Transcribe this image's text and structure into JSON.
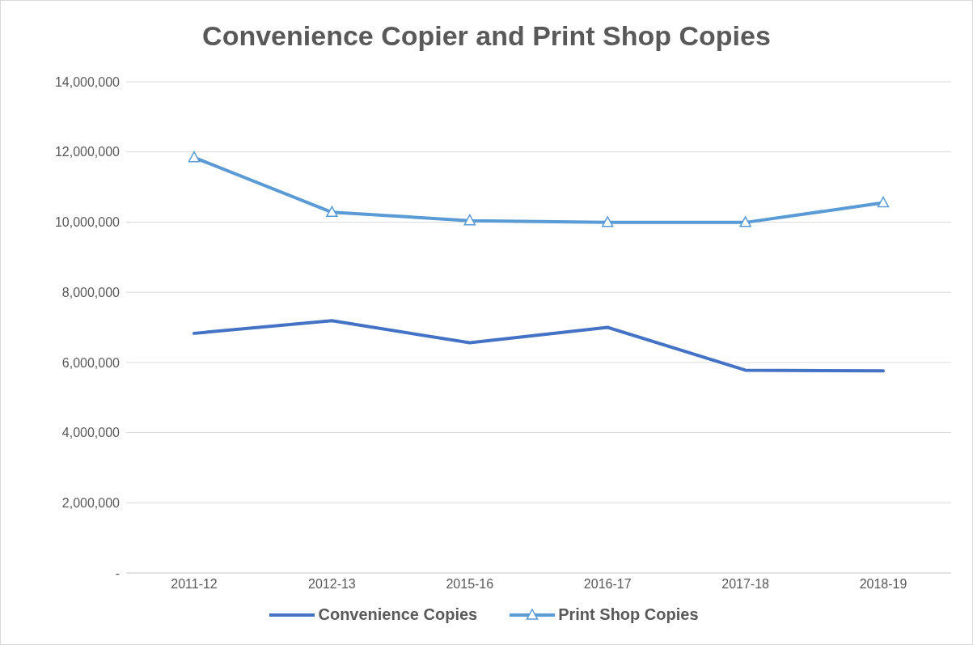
{
  "chart_data": {
    "type": "line",
    "title": "Convenience Copier and Print Shop Copies",
    "categories": [
      "2011-12",
      "2012-13",
      "2015-16",
      "2016-17",
      "2017-18",
      "2018-19"
    ],
    "series": [
      {
        "name": "Convenience Copies",
        "color": "#4472c4",
        "marker": "none",
        "values": [
          6830000,
          7190000,
          6560000,
          7000000,
          5780000,
          5760000
        ]
      },
      {
        "name": "Print Shop Copies",
        "color": "#5b9bd5",
        "marker": "triangle",
        "values": [
          11840000,
          10280000,
          10040000,
          9990000,
          9990000,
          10550000
        ]
      }
    ],
    "ylim": [
      0,
      14000000
    ],
    "yticks": [
      {
        "value": 0,
        "label": "-"
      },
      {
        "value": 2000000,
        "label": "2,000,000"
      },
      {
        "value": 4000000,
        "label": "4,000,000"
      },
      {
        "value": 6000000,
        "label": "6,000,000"
      },
      {
        "value": 8000000,
        "label": "8,000,000"
      },
      {
        "value": 10000000,
        "label": "10,000,000"
      },
      {
        "value": 12000000,
        "label": "12,000,000"
      },
      {
        "value": 14000000,
        "label": "14,000,000"
      }
    ],
    "grid": "y",
    "legend": "bottom",
    "line_style": "solid"
  }
}
